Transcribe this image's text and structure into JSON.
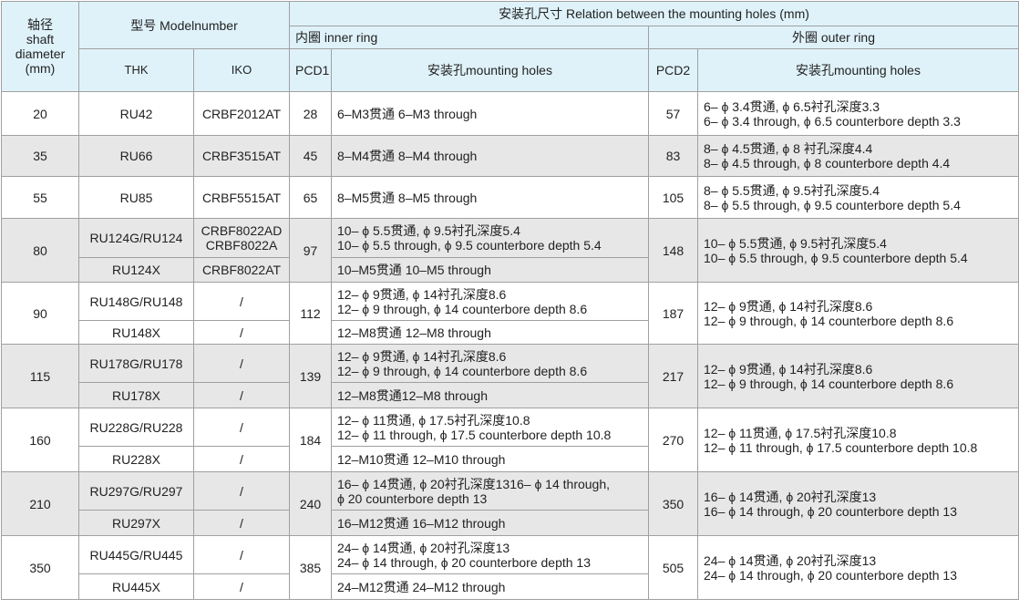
{
  "header": {
    "shaft": [
      "轴径",
      "shaft",
      "diameter",
      "(mm)"
    ],
    "model": "型号 Modelnumber",
    "mounting": "安装孔尺寸  Relation between the mounting holes (mm)",
    "inner_ring": "内圈 inner ring",
    "outer_ring": "外圈 outer ring",
    "thk": "THK",
    "iko": "IKO",
    "pcd1": "PCD1",
    "inner_holes": "安装孔mounting holes",
    "pcd2": "PCD2",
    "outer_holes": "安装孔mounting holes"
  },
  "colors": {
    "header_bg": "#dff2fa",
    "alt_row_bg": "#e7e7e7",
    "border": "#a0a0a0"
  },
  "rows": [
    {
      "shaft": "20",
      "shaded": false,
      "sub": [
        {
          "thk": "RU42",
          "iko": [
            "CRBF2012AT"
          ],
          "inner": [
            "6–M3贯通  6–M3 through"
          ]
        }
      ],
      "pcd1": "28",
      "pcd2": "57",
      "outer": [
        "6– ϕ 3.4贯通, ϕ 6.5衬孔深度3.3",
        "6– ϕ 3.4 through,  ϕ 6.5 counterbore depth 3.3"
      ]
    },
    {
      "shaft": "35",
      "shaded": true,
      "sub": [
        {
          "thk": "RU66",
          "iko": [
            "CRBF3515AT"
          ],
          "inner": [
            "8–M4贯通  8–M4 through"
          ]
        }
      ],
      "pcd1": "45",
      "pcd2": "83",
      "outer": [
        "8– ϕ 4.5贯通, ϕ 8 衬孔深度4.4",
        "8– ϕ 4.5 through,  ϕ 8 counterbore depth 4.4"
      ]
    },
    {
      "shaft": "55",
      "shaded": false,
      "sub": [
        {
          "thk": "RU85",
          "iko": [
            "CRBF5515AT"
          ],
          "inner": [
            "8–M5贯通  8–M5 through"
          ]
        }
      ],
      "pcd1": "65",
      "pcd2": "105",
      "outer": [
        "8– ϕ 5.5贯通, ϕ 9.5衬孔深度5.4",
        "8– ϕ 5.5 through,  ϕ 9.5 counterbore depth 5.4"
      ]
    },
    {
      "shaft": "80",
      "shaded": true,
      "sub": [
        {
          "thk": "RU124G/RU124",
          "iko": [
            "CRBF8022AD",
            "CRBF8022A"
          ],
          "inner": [
            "10– ϕ 5.5贯通, ϕ 9.5衬孔深度5.4",
            "10– ϕ 5.5 through,  ϕ 9.5 counterbore depth 5.4"
          ]
        },
        {
          "thk": "RU124X",
          "iko": [
            "CRBF8022AT"
          ],
          "inner": [
            "10–M5贯通   10–M5 through"
          ]
        }
      ],
      "pcd1": "97",
      "pcd2": "148",
      "outer": [
        "10– ϕ 5.5贯通, ϕ 9.5衬孔深度5.4",
        "10– ϕ 5.5 through,   ϕ 9.5 counterbore depth 5.4"
      ]
    },
    {
      "shaft": "90",
      "shaded": false,
      "sub": [
        {
          "thk": "RU148G/RU148",
          "iko": [
            "/"
          ],
          "inner": [
            "12– ϕ 9贯通, ϕ 14衬孔深度8.6",
            "12– ϕ 9 through,  ϕ 14 counterbore depth 8.6"
          ]
        },
        {
          "thk": "RU148X",
          "iko": [
            "/"
          ],
          "inner": [
            "12–M8贯通  12–M8 through"
          ]
        }
      ],
      "pcd1": "112",
      "pcd2": "187",
      "outer": [
        "12– ϕ 9贯通, ϕ 14衬孔深度8.6",
        "12– ϕ 9 through,   ϕ 14 counterbore depth 8.6"
      ]
    },
    {
      "shaft": "115",
      "shaded": true,
      "sub": [
        {
          "thk": "RU178G/RU178",
          "iko": [
            "/"
          ],
          "inner": [
            "12– ϕ 9贯通, ϕ 14衬孔深度8.6",
            "12– ϕ 9 through,  ϕ 14 counterbore depth 8.6"
          ]
        },
        {
          "thk": "RU178X",
          "iko": [
            "/"
          ],
          "inner": [
            "12–M8贯通12–M8 through"
          ]
        }
      ],
      "pcd1": "139",
      "pcd2": "217",
      "outer": [
        "12– ϕ 9贯通, ϕ 14衬孔深度8.6",
        "12– ϕ 9 through,   ϕ 14 counterbore depth 8.6"
      ]
    },
    {
      "shaft": "160",
      "shaded": false,
      "sub": [
        {
          "thk": "RU228G/RU228",
          "iko": [
            "/"
          ],
          "inner": [
            "12– ϕ 11贯通, ϕ 17.5衬孔深度10.8",
            "12– ϕ 11 through,  ϕ 17.5 counterbore depth 10.8"
          ]
        },
        {
          "thk": "RU228X",
          "iko": [
            "/"
          ],
          "inner": [
            "12–M10贯通    12–M10 through"
          ]
        }
      ],
      "pcd1": "184",
      "pcd2": "270",
      "outer": [
        "12– ϕ 11贯通, ϕ 17.5衬孔深度10.8",
        "12– ϕ 11 through,   ϕ 17.5 counterbore depth 10.8"
      ]
    },
    {
      "shaft": "210",
      "shaded": true,
      "sub": [
        {
          "thk": "RU297G/RU297",
          "iko": [
            "/"
          ],
          "inner": [
            "16– ϕ 14贯通, ϕ 20衬孔深度1316– ϕ 14 through,",
            "ϕ 20 counterbore depth 13"
          ]
        },
        {
          "thk": "RU297X",
          "iko": [
            "/"
          ],
          "inner": [
            "16–M12贯通  16–M12 through"
          ]
        }
      ],
      "pcd1": "240",
      "pcd2": "350",
      "outer": [
        "16– ϕ 14贯通, ϕ 20衬孔深度13",
        "16– ϕ 14 through,  ϕ 20 counterbore depth 13"
      ]
    },
    {
      "shaft": "350",
      "shaded": false,
      "sub": [
        {
          "thk": "RU445G/RU445",
          "iko": [
            "/"
          ],
          "inner": [
            "24– ϕ 14贯通, ϕ 20衬孔深度13",
            "24– ϕ 14 through,   ϕ 20 counterbore depth 13"
          ]
        },
        {
          "thk": "RU445X",
          "iko": [
            "/"
          ],
          "inner": [
            "24–M12贯通  24–M12 through"
          ]
        }
      ],
      "pcd1": "385",
      "pcd2": "505",
      "outer": [
        "24– ϕ 14贯通, ϕ 20衬孔深度13",
        "24– ϕ 14 through,  ϕ 20 counterbore depth 13"
      ]
    }
  ]
}
